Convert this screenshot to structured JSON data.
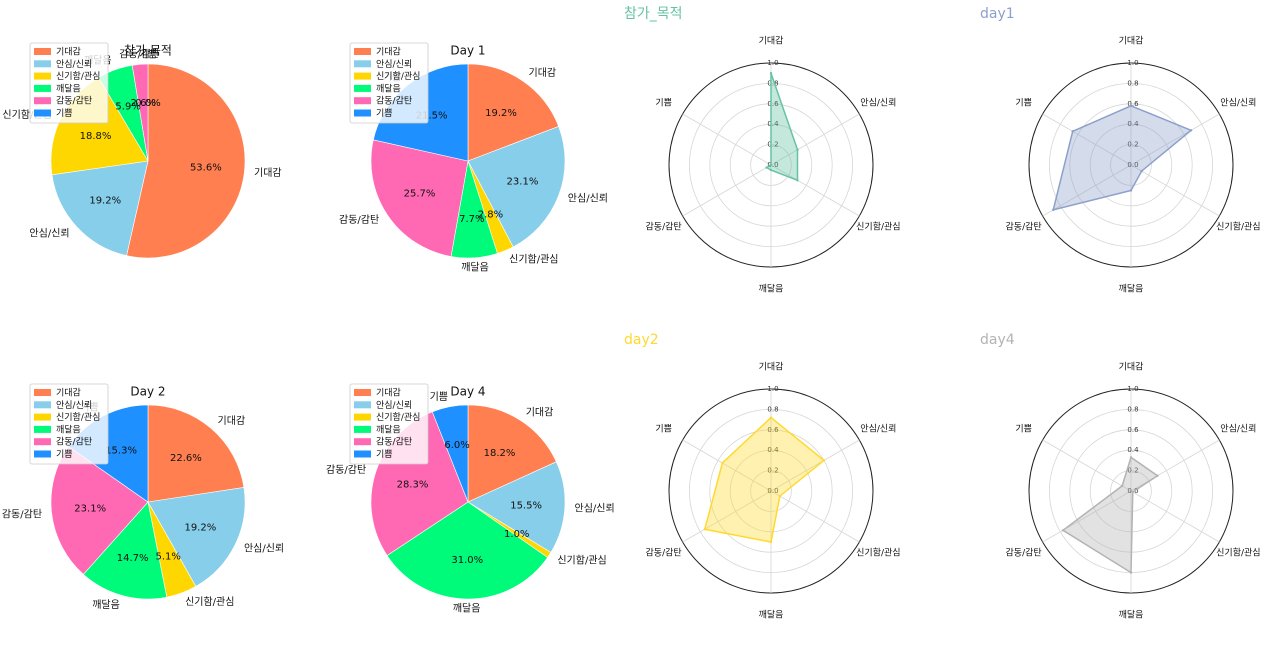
{
  "chart_data": [
    {
      "type": "pie",
      "title": "참가 목적",
      "categories": [
        "기대감",
        "안심/신뢰",
        "신기함/관심",
        "깨달음",
        "감동/감탄",
        "기쁨"
      ],
      "values": [
        53.6,
        19.2,
        18.8,
        5.9,
        2.6,
        0.0
      ],
      "labels": [
        "53.6%",
        "19.2%",
        "18.8%",
        "5.9%",
        "2.6%",
        "0.0%"
      ],
      "legend": "top-left"
    },
    {
      "type": "pie",
      "title": "Day 1",
      "categories": [
        "기대감",
        "안심/신뢰",
        "신기함/관심",
        "깨달음",
        "감동/감탄",
        "기쁨"
      ],
      "values": [
        19.2,
        23.1,
        2.8,
        7.7,
        25.7,
        21.5
      ],
      "labels": [
        "19.2%",
        "23.1%",
        "2.8%",
        "7.7%",
        "25.7%",
        "21.5%"
      ],
      "legend": "top-left"
    },
    {
      "type": "pie",
      "title": "Day 2",
      "categories": [
        "기대감",
        "안심/신뢰",
        "신기함/관심",
        "깨달음",
        "감동/감탄",
        "기쁨"
      ],
      "values": [
        22.6,
        19.2,
        5.1,
        14.7,
        23.1,
        15.3
      ],
      "labels": [
        "22.6%",
        "19.2%",
        "5.1%",
        "14.7%",
        "23.1%",
        "15.3%"
      ],
      "legend": "top-left"
    },
    {
      "type": "pie",
      "title": "Day 4",
      "categories": [
        "기대감",
        "안심/신뢰",
        "신기함/관심",
        "깨달음",
        "감동/감탄",
        "기쁨"
      ],
      "values": [
        18.2,
        15.5,
        1.0,
        31.0,
        28.3,
        6.0
      ],
      "labels": [
        "18.2%",
        "15.5%",
        "1.0%",
        "31.0%",
        "28.3%",
        "6.0%"
      ],
      "legend": "top-left"
    },
    {
      "type": "radar",
      "title": "참가_목적",
      "axes": [
        "기대감",
        "안심/신뢰",
        "신기함/관심",
        "깨달음",
        "감동/감탄",
        "기쁨"
      ],
      "values": [
        0.9,
        0.3,
        0.3,
        0.05,
        0.05,
        0.0
      ],
      "ylim": [
        0,
        1.0
      ],
      "ticks": [
        "0.0",
        "0.2",
        "0.4",
        "0.6",
        "0.8",
        "1.0"
      ],
      "color": "#66c2a5"
    },
    {
      "type": "radar",
      "title": "day1",
      "axes": [
        "기대감",
        "안심/신뢰",
        "신기함/관심",
        "깨달음",
        "감동/감탄",
        "기쁨"
      ],
      "values": [
        0.58,
        0.68,
        0.12,
        0.25,
        0.88,
        0.66
      ],
      "ylim": [
        0,
        1.0
      ],
      "ticks": [
        "0.0",
        "0.2",
        "0.4",
        "0.6",
        "0.8",
        "1.0"
      ],
      "color": "#8da0cb"
    },
    {
      "type": "radar",
      "title": "day2",
      "axes": [
        "기대감",
        "안심/신뢰",
        "신기함/관심",
        "깨달음",
        "감동/감탄",
        "기쁨"
      ],
      "values": [
        0.72,
        0.6,
        0.1,
        0.5,
        0.75,
        0.55
      ],
      "ylim": [
        0,
        1.0
      ],
      "ticks": [
        "0.0",
        "0.2",
        "0.4",
        "0.6",
        "0.8",
        "1.0"
      ],
      "color": "#ffd92f"
    },
    {
      "type": "radar",
      "title": "day4",
      "axes": [
        "기대감",
        "안심/신뢰",
        "신기함/관심",
        "깨달음",
        "감동/감탄",
        "기쁨"
      ],
      "values": [
        0.33,
        0.3,
        0.02,
        0.8,
        0.77,
        0.1
      ],
      "ylim": [
        0,
        1.0
      ],
      "ticks": [
        "0.0",
        "0.2",
        "0.4",
        "0.6",
        "0.8",
        "1.0"
      ],
      "color": "#b3b3b3"
    }
  ],
  "colors": {
    "기대감": "#ff7f50",
    "안심/신뢰": "#87ceeb",
    "신기함/관심": "#ffd700",
    "깨달음": "#00fa7a",
    "감동/감탄": "#ff69b4",
    "기쁨": "#1e90ff"
  }
}
